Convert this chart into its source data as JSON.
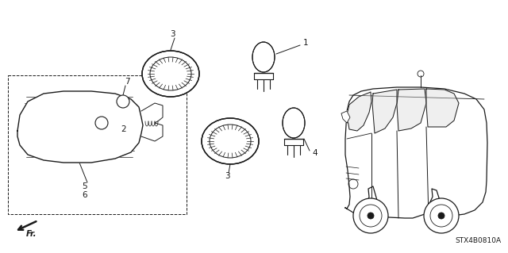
{
  "bg_color": "#ffffff",
  "line_color": "#1a1a1a",
  "diagram_code": "STX4B0810A",
  "figure_size": [
    6.4,
    3.19
  ],
  "dpi": 100
}
